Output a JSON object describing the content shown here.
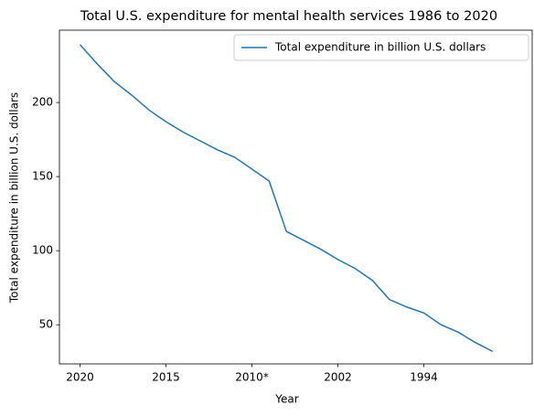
{
  "chart_data": {
    "type": "line",
    "title": "Total U.S. expenditure for mental health services 1986 to 2020",
    "x_label": "Year",
    "y_label": "Total expenditure in billion U.S. dollars",
    "categories": [
      "2020",
      null,
      null,
      null,
      null,
      "2015",
      null,
      null,
      null,
      null,
      "2010*",
      null,
      null,
      null,
      null,
      "2002",
      null,
      null,
      null,
      null,
      "1994",
      null,
      null,
      null,
      null
    ],
    "series": [
      {
        "name": "Total expenditure in billion U.S. dollars",
        "color": "#1f77b4",
        "values": [
          239,
          226,
          214,
          205,
          195,
          187,
          180,
          174,
          168,
          163,
          155,
          147,
          113,
          107,
          101,
          94,
          88,
          80,
          67,
          62,
          58,
          50,
          45,
          38,
          32
        ]
      }
    ],
    "xlim": [
      -1.2,
      26.3
    ],
    "ylim": [
      23.6,
      248.8
    ],
    "yticks": [
      50,
      100,
      150,
      200
    ],
    "legend": "upper right"
  }
}
